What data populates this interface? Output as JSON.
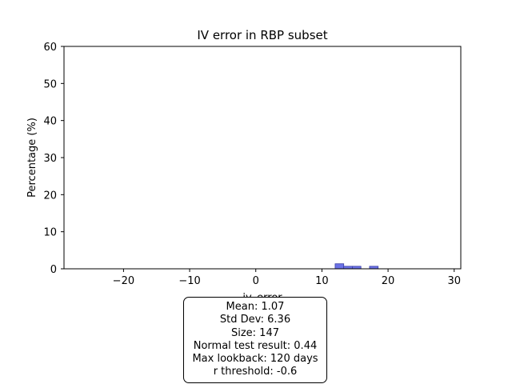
{
  "chart_data": {
    "type": "bar",
    "title": "IV error in RBP subset",
    "xlabel": "iv_error",
    "ylabel": "Percentage (%)",
    "xlim": [
      -29,
      31
    ],
    "ylim": [
      0,
      60
    ],
    "xticks": [
      -20,
      -10,
      0,
      10,
      20,
      30
    ],
    "yticks": [
      0,
      10,
      20,
      30,
      40,
      50,
      60
    ],
    "bar_color": "#6b72e6",
    "bar_edge_color": "#3a3fa8",
    "bins": [
      {
        "x0": 12.0,
        "x1": 13.3,
        "value": 1.36
      },
      {
        "x0": 13.3,
        "x1": 14.6,
        "value": 0.68
      },
      {
        "x0": 14.6,
        "x1": 15.9,
        "value": 0.68
      },
      {
        "x0": 17.2,
        "x1": 18.5,
        "value": 0.68
      }
    ]
  },
  "stats": {
    "mean": "Mean: 1.07",
    "std": "Std Dev: 6.36",
    "size": "Size: 147",
    "normal": "Normal test result: 0.44",
    "lookback": "Max lookback: 120 days",
    "threshold": "r threshold: -0.6"
  }
}
